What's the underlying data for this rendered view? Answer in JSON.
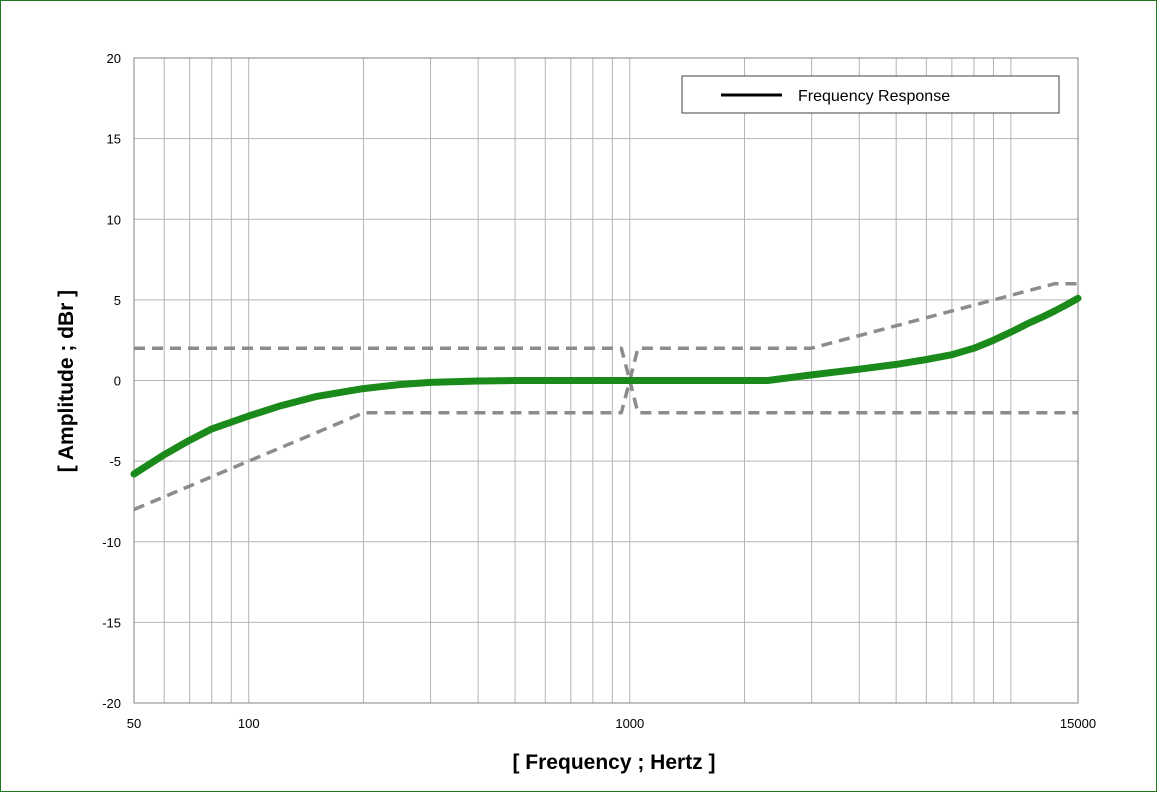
{
  "chart_data": {
    "type": "line",
    "xscale": "log",
    "xlim": [
      50,
      15000
    ],
    "ylim": [
      -20,
      20
    ],
    "xlabel": "[ Frequency ; Hertz ]",
    "ylabel": "[ Amplitude ; dBr ]",
    "xticks": [
      {
        "value": 50,
        "label": "50"
      },
      {
        "value": 100,
        "label": "100"
      },
      {
        "value": 1000,
        "label": "1000"
      },
      {
        "value": 15000,
        "label": "15000"
      }
    ],
    "yticks": [
      {
        "value": 20,
        "label": "20"
      },
      {
        "value": 15,
        "label": "15"
      },
      {
        "value": 10,
        "label": "10"
      },
      {
        "value": 5,
        "label": "5"
      },
      {
        "value": 0,
        "label": "0"
      },
      {
        "value": -5,
        "label": "-5"
      },
      {
        "value": -10,
        "label": "-10"
      },
      {
        "value": -15,
        "label": "-15"
      },
      {
        "value": -20,
        "label": "-20"
      }
    ],
    "grid": true,
    "legend": {
      "position": "top-right",
      "entries": [
        "Frequency Response"
      ]
    },
    "series": [
      {
        "name": "Frequency Response",
        "color": "#1a8a1a",
        "style": "solid",
        "points": [
          [
            50,
            -5.8
          ],
          [
            60,
            -4.6
          ],
          [
            70,
            -3.7
          ],
          [
            80,
            -3.0
          ],
          [
            100,
            -2.2
          ],
          [
            120,
            -1.6
          ],
          [
            150,
            -1.0
          ],
          [
            200,
            -0.5
          ],
          [
            250,
            -0.25
          ],
          [
            300,
            -0.12
          ],
          [
            400,
            -0.03
          ],
          [
            500,
            0
          ],
          [
            700,
            0
          ],
          [
            1000,
            0
          ],
          [
            1500,
            0
          ],
          [
            2000,
            0
          ],
          [
            2300,
            0
          ],
          [
            3000,
            0.35
          ],
          [
            4000,
            0.7
          ],
          [
            5000,
            1.0
          ],
          [
            6000,
            1.3
          ],
          [
            7000,
            1.6
          ],
          [
            8000,
            2.0
          ],
          [
            9000,
            2.5
          ],
          [
            10000,
            3.0
          ],
          [
            11000,
            3.5
          ],
          [
            12000,
            3.9
          ],
          [
            13000,
            4.3
          ],
          [
            14000,
            4.7
          ],
          [
            15000,
            5.1
          ]
        ]
      },
      {
        "color": "#8c8c8c",
        "style": "dashed",
        "points": [
          [
            50,
            2
          ],
          [
            950,
            2
          ],
          [
            1000,
            0
          ],
          [
            1050,
            2
          ],
          [
            3000,
            2
          ],
          [
            13000,
            6
          ],
          [
            15000,
            6
          ]
        ]
      },
      {
        "color": "#8c8c8c",
        "style": "dashed",
        "points": [
          [
            50,
            -8
          ],
          [
            200,
            -2
          ],
          [
            950,
            -2
          ],
          [
            1000,
            0
          ],
          [
            1050,
            -2
          ],
          [
            15000,
            -2
          ]
        ]
      }
    ]
  }
}
